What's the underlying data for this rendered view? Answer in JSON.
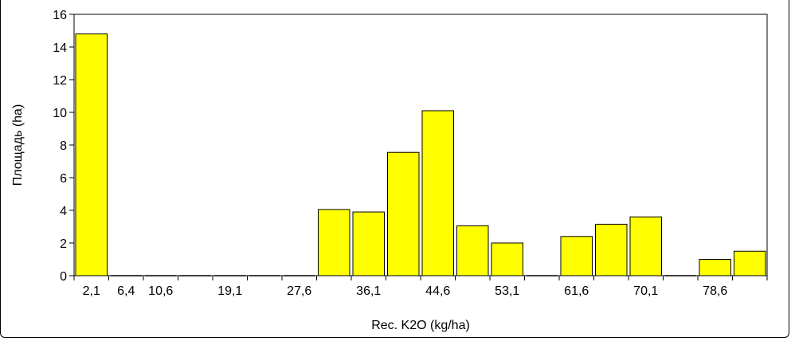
{
  "chart_data": {
    "type": "bar",
    "xlabel": "Rec. K2O (kg/ha)",
    "ylabel": "Площадь (ha)",
    "ylim": [
      0,
      16
    ],
    "yticks": [
      "0",
      "2",
      "4",
      "6",
      "8",
      "10",
      "12",
      "14",
      "16"
    ],
    "xtick_labels": [
      "2,1",
      "6,4",
      "10,6",
      "19,1",
      "27,6",
      "36,1",
      "44,6",
      "53,1",
      "61,6",
      "70,1",
      "78,6"
    ],
    "bins": 20,
    "values": [
      14.8,
      0,
      0,
      0,
      0,
      0,
      0,
      4.05,
      3.9,
      7.55,
      10.1,
      3.05,
      2.0,
      0,
      2.4,
      3.15,
      3.6,
      0,
      1.0,
      1.5
    ],
    "bar_color": "#ffff00",
    "bar_edge_color": "#000000",
    "grid": false,
    "legend": "none"
  }
}
